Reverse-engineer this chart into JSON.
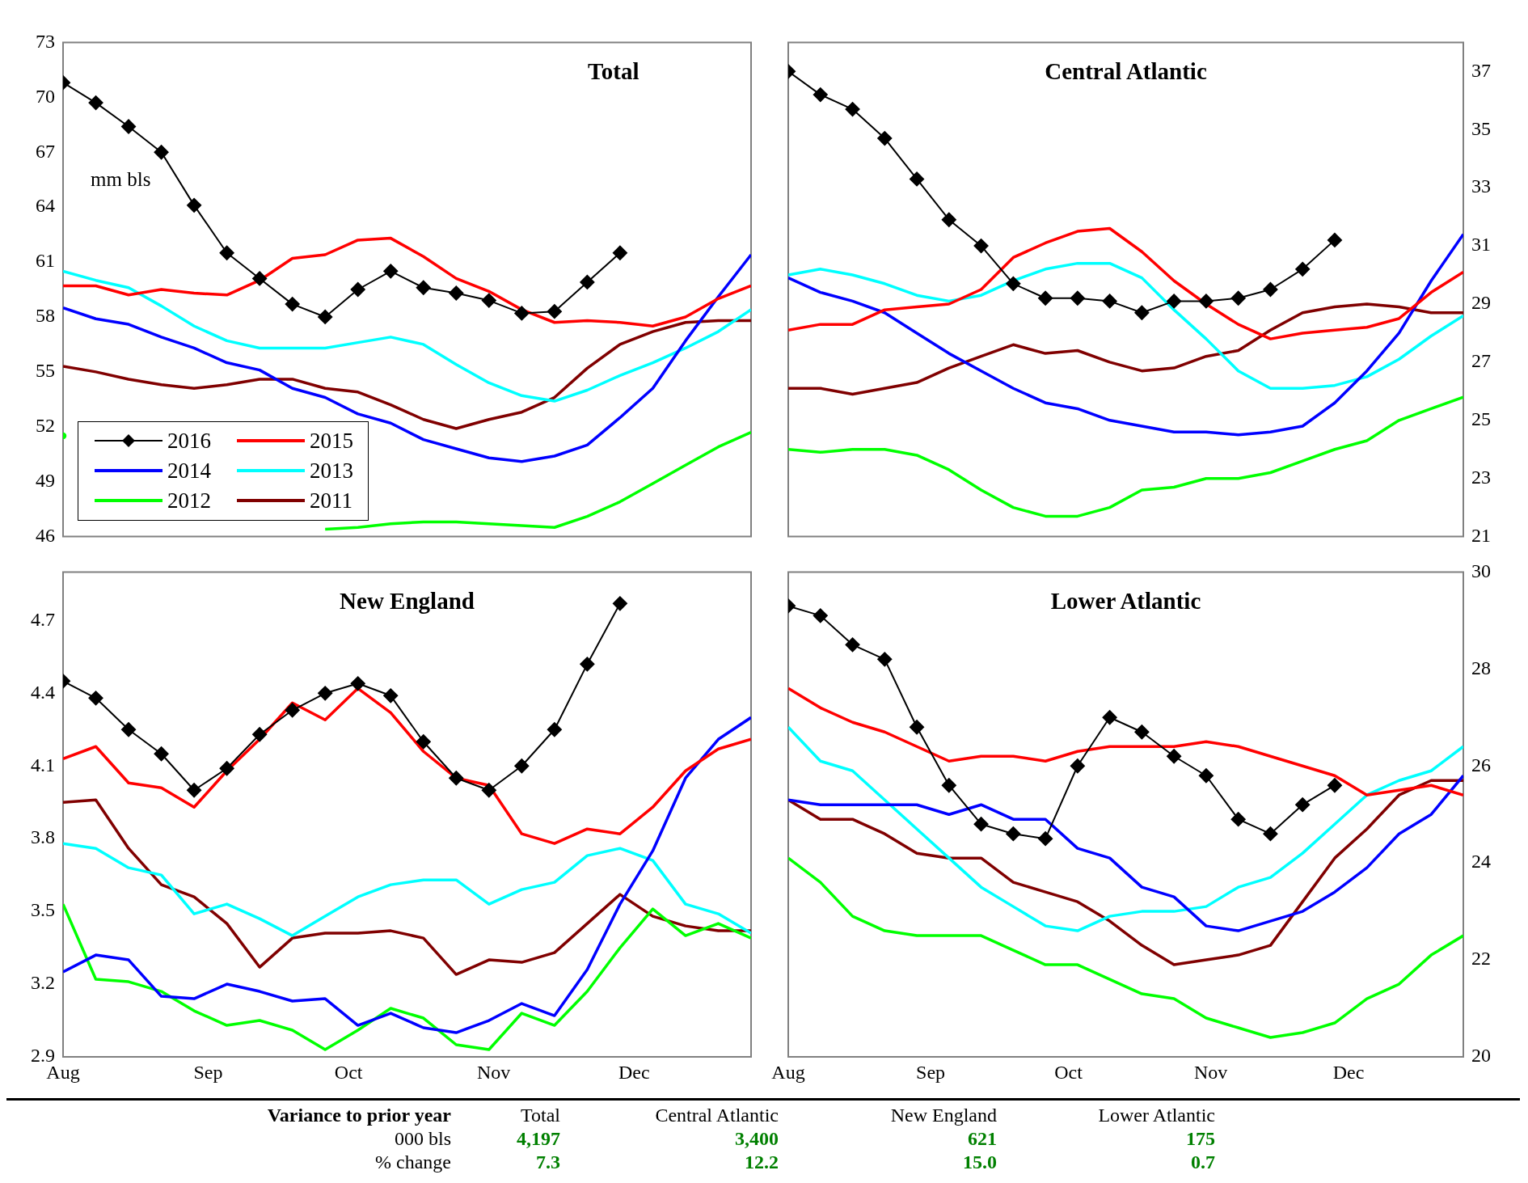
{
  "chart_data": [
    {
      "type": "line",
      "title": "Total",
      "annotations": [
        "mm bls"
      ],
      "legend": "bottom left",
      "tick_labels": "y",
      "x": [
        "--08-01",
        "--08-08",
        "--08-15",
        "--08-22",
        "--08-29",
        "--09-05",
        "--09-12",
        "--09-19",
        "--09-26",
        "--10-03",
        "--10-10",
        "--10-17",
        "--10-24",
        "--10-31",
        "--11-07",
        "--11-14",
        "--11-21",
        "--11-28",
        "--12-05",
        "--12-12",
        "--12-19",
        "--12-26"
      ],
      "xlim": [
        "--08-01",
        "--12-26"
      ],
      "xticks": [
        {
          "value": "--08-01",
          "label": null
        },
        {
          "value": "--09-01",
          "label": null
        },
        {
          "value": "--10-01",
          "label": null
        },
        {
          "value": "--11-01",
          "label": null
        },
        {
          "value": "--12-01",
          "label": null
        }
      ],
      "ylim": [
        46,
        73
      ],
      "yticks": [
        46,
        49,
        52,
        55,
        58,
        61,
        64,
        67,
        70,
        73
      ],
      "series": [
        {
          "name": "2016",
          "color": "#000000",
          "marker": "diamond",
          "x": [
            "--08-01",
            "--08-08",
            "--08-15",
            "--08-22",
            "--08-29",
            "--09-05",
            "--09-12",
            "--09-19",
            "--09-26",
            "--10-03",
            "--10-10",
            "--10-17",
            "--10-24",
            "--10-31",
            "--11-07",
            "--11-14",
            "--11-21",
            "--11-28"
          ],
          "values": [
            70.8,
            69.7,
            68.4,
            67.0,
            64.1,
            61.5,
            60.1,
            58.7,
            58.0,
            59.5,
            60.5,
            59.6,
            59.3,
            58.9,
            58.2,
            58.3,
            59.9,
            61.5
          ]
        },
        {
          "name": "2015",
          "color": "#ff0000",
          "values": [
            59.7,
            59.7,
            59.2,
            59.5,
            59.3,
            59.2,
            60.0,
            61.2,
            61.4,
            62.2,
            62.3,
            61.3,
            60.1,
            59.4,
            58.4,
            57.7,
            57.8,
            57.7,
            57.5,
            58.0,
            59.0,
            59.7
          ]
        },
        {
          "name": "2014",
          "color": "#0000ff",
          "values": [
            58.5,
            57.9,
            57.6,
            56.9,
            56.3,
            55.5,
            55.1,
            54.1,
            53.6,
            52.7,
            52.2,
            51.3,
            50.8,
            50.3,
            50.1,
            50.4,
            51.0,
            52.5,
            54.1,
            56.7,
            59.1,
            61.4
          ]
        },
        {
          "name": "2013",
          "color": "#00ffff",
          "values": [
            60.5,
            60.0,
            59.6,
            58.6,
            57.5,
            56.7,
            56.3,
            56.3,
            56.3,
            56.6,
            56.9,
            56.5,
            55.4,
            54.4,
            53.7,
            53.4,
            54.0,
            54.8,
            55.5,
            56.3,
            57.2,
            58.4
          ]
        },
        {
          "name": "2012",
          "color": "#00ff00",
          "values": [
            51.5,
            null,
            null,
            null,
            null,
            null,
            null,
            null,
            46.4,
            46.5,
            46.7,
            46.8,
            46.8,
            46.7,
            46.6,
            46.5,
            47.1,
            47.9,
            48.9,
            49.9,
            50.9,
            51.7
          ]
        },
        {
          "name": "2011",
          "color": "#800000",
          "values": [
            55.3,
            55.0,
            54.6,
            54.3,
            54.1,
            54.3,
            54.6,
            54.6,
            54.1,
            53.9,
            53.2,
            52.4,
            51.9,
            52.4,
            52.8,
            53.6,
            55.2,
            56.5,
            57.2,
            57.7,
            57.8,
            57.8
          ]
        }
      ]
    },
    {
      "type": "line",
      "title": "Central Atlantic",
      "tick_labels": "y",
      "x": [
        "--08-01",
        "--08-08",
        "--08-15",
        "--08-22",
        "--08-29",
        "--09-05",
        "--09-12",
        "--09-19",
        "--09-26",
        "--10-03",
        "--10-10",
        "--10-17",
        "--10-24",
        "--10-31",
        "--11-07",
        "--11-14",
        "--11-21",
        "--11-28",
        "--12-05",
        "--12-12",
        "--12-19",
        "--12-26"
      ],
      "xlim": [
        "--08-01",
        "--12-26"
      ],
      "xticks": [
        {
          "value": "--08-01",
          "label": null
        },
        {
          "value": "--09-01",
          "label": null
        },
        {
          "value": "--10-01",
          "label": null
        },
        {
          "value": "--11-01",
          "label": null
        },
        {
          "value": "--12-01",
          "label": null
        }
      ],
      "y2lim": [
        21,
        38
      ],
      "y2ticks": [
        21,
        23,
        25,
        27,
        29,
        31,
        33,
        35,
        37
      ],
      "series": [
        {
          "color": "#000000",
          "marker": "diamond",
          "axis": "y2",
          "x": [
            "--08-01",
            "--08-08",
            "--08-15",
            "--08-22",
            "--08-29",
            "--09-05",
            "--09-12",
            "--09-19",
            "--09-26",
            "--10-03",
            "--10-10",
            "--10-17",
            "--10-24",
            "--10-31",
            "--11-07",
            "--11-14",
            "--11-21",
            "--11-28"
          ],
          "values": [
            37.0,
            36.2,
            35.7,
            34.7,
            33.3,
            31.9,
            31.0,
            29.7,
            29.2,
            29.2,
            29.1,
            28.7,
            29.1,
            29.1,
            29.2,
            29.5,
            30.2,
            31.2
          ]
        },
        {
          "color": "#ff0000",
          "axis": "y2",
          "values": [
            28.1,
            28.3,
            28.3,
            28.8,
            28.9,
            29.0,
            29.5,
            30.6,
            31.1,
            31.5,
            31.6,
            30.8,
            29.8,
            29.0,
            28.3,
            27.8,
            28.0,
            28.1,
            28.2,
            28.5,
            29.4,
            30.1
          ]
        },
        {
          "color": "#0000ff",
          "axis": "y2",
          "values": [
            29.9,
            29.4,
            29.1,
            28.7,
            28.0,
            27.3,
            26.7,
            26.1,
            25.6,
            25.4,
            25.0,
            24.8,
            24.6,
            24.6,
            24.5,
            24.6,
            24.8,
            25.6,
            26.7,
            28.0,
            29.8,
            31.4
          ]
        },
        {
          "color": "#00ffff",
          "axis": "y2",
          "values": [
            30.0,
            30.2,
            30.0,
            29.7,
            29.3,
            29.1,
            29.3,
            29.8,
            30.2,
            30.4,
            30.4,
            29.9,
            28.8,
            27.8,
            26.7,
            26.1,
            26.1,
            26.2,
            26.5,
            27.1,
            27.9,
            28.6
          ]
        },
        {
          "color": "#00ff00",
          "axis": "y2",
          "values": [
            24.0,
            23.9,
            24.0,
            24.0,
            23.8,
            23.3,
            22.6,
            22.0,
            21.7,
            21.7,
            22.0,
            22.6,
            22.7,
            23.0,
            23.0,
            23.2,
            23.6,
            24.0,
            24.3,
            25.0,
            25.4,
            25.8
          ]
        },
        {
          "color": "#800000",
          "axis": "y2",
          "values": [
            26.1,
            26.1,
            25.9,
            26.1,
            26.3,
            26.8,
            27.2,
            27.6,
            27.3,
            27.4,
            27.0,
            26.7,
            26.8,
            27.2,
            27.4,
            28.1,
            28.7,
            28.9,
            29.0,
            28.9,
            28.7,
            28.7
          ]
        }
      ]
    },
    {
      "type": "line",
      "title": "New England",
      "x": [
        "--08-01",
        "--08-08",
        "--08-15",
        "--08-22",
        "--08-29",
        "--09-05",
        "--09-12",
        "--09-19",
        "--09-26",
        "--10-03",
        "--10-10",
        "--10-17",
        "--10-24",
        "--10-31",
        "--11-07",
        "--11-14",
        "--11-21",
        "--11-28",
        "--12-05",
        "--12-12",
        "--12-19",
        "--12-26"
      ],
      "xlim": [
        "--08-01",
        "--12-26"
      ],
      "xticks": [
        {
          "value": "--08-01",
          "label": "Aug"
        },
        {
          "value": "--09-01",
          "label": "Sep"
        },
        {
          "value": "--10-01",
          "label": "Oct"
        },
        {
          "value": "--11-01",
          "label": "Nov"
        },
        {
          "value": "--12-01",
          "label": "Dec"
        }
      ],
      "ylim": [
        2.9,
        4.9
      ],
      "yticks": [
        {
          "value": 2.9,
          "label": "2.9"
        },
        {
          "value": 3.2,
          "label": "3.2"
        },
        {
          "value": 3.5,
          "label": "3.5"
        },
        {
          "value": 3.8,
          "label": "3.8"
        },
        {
          "value": 4.1,
          "label": "4.1"
        },
        {
          "value": 4.4,
          "label": "4.4"
        },
        {
          "value": 4.7,
          "label": "4.7"
        }
      ],
      "series": [
        {
          "color": "#000000",
          "marker": "diamond",
          "x": [
            "--08-01",
            "--08-08",
            "--08-15",
            "--08-22",
            "--08-29",
            "--09-05",
            "--09-12",
            "--09-19",
            "--09-26",
            "--10-03",
            "--10-10",
            "--10-17",
            "--10-24",
            "--10-31",
            "--11-07",
            "--11-14",
            "--11-21",
            "--11-28"
          ],
          "values": [
            4.45,
            4.38,
            4.25,
            4.15,
            4.0,
            4.09,
            4.23,
            4.33,
            4.4,
            4.44,
            4.39,
            4.2,
            4.05,
            4.0,
            4.1,
            4.25,
            4.52,
            4.77
          ]
        },
        {
          "color": "#ff0000",
          "values": [
            4.13,
            4.18,
            4.03,
            4.01,
            3.93,
            4.08,
            4.21,
            4.36,
            4.29,
            4.42,
            4.32,
            4.16,
            4.05,
            4.02,
            3.82,
            3.78,
            3.84,
            3.82,
            3.93,
            4.08,
            4.17,
            4.21
          ]
        },
        {
          "color": "#0000ff",
          "values": [
            3.25,
            3.32,
            3.3,
            3.15,
            3.14,
            3.2,
            3.17,
            3.13,
            3.14,
            3.03,
            3.08,
            3.02,
            3.0,
            3.05,
            3.12,
            3.07,
            3.26,
            3.53,
            3.75,
            4.05,
            4.21,
            4.3
          ]
        },
        {
          "color": "#00ffff",
          "values": [
            3.78,
            3.76,
            3.68,
            3.65,
            3.49,
            3.53,
            3.47,
            3.4,
            3.48,
            3.56,
            3.61,
            3.63,
            3.63,
            3.53,
            3.59,
            3.62,
            3.73,
            3.76,
            3.71,
            3.53,
            3.49,
            3.41
          ]
        },
        {
          "color": "#00ff00",
          "values": [
            3.53,
            3.22,
            3.21,
            3.17,
            3.09,
            3.03,
            3.05,
            3.01,
            2.93,
            3.01,
            3.1,
            3.06,
            2.95,
            2.93,
            3.08,
            3.03,
            3.17,
            3.35,
            3.51,
            3.4,
            3.45,
            3.39
          ]
        },
        {
          "color": "#800000",
          "values": [
            3.95,
            3.96,
            3.76,
            3.61,
            3.56,
            3.45,
            3.27,
            3.39,
            3.41,
            3.41,
            3.42,
            3.39,
            3.24,
            3.3,
            3.29,
            3.33,
            3.45,
            3.57,
            3.48,
            3.44,
            3.42,
            3.42
          ]
        }
      ]
    },
    {
      "type": "line",
      "title": "Lower Atlantic",
      "x": [
        "--08-01",
        "--08-08",
        "--08-15",
        "--08-22",
        "--08-29",
        "--09-05",
        "--09-12",
        "--09-19",
        "--09-26",
        "--10-03",
        "--10-10",
        "--10-17",
        "--10-24",
        "--10-31",
        "--11-07",
        "--11-14",
        "--11-21",
        "--11-28",
        "--12-05",
        "--12-12",
        "--12-19",
        "--12-26"
      ],
      "xlim": [
        "--08-01",
        "--12-26"
      ],
      "xticks": [
        {
          "value": "--08-01",
          "label": "Aug"
        },
        {
          "value": "--09-01",
          "label": "Sep"
        },
        {
          "value": "--10-01",
          "label": "Oct"
        },
        {
          "value": "--11-01",
          "label": "Nov"
        },
        {
          "value": "--12-01",
          "label": "Dec"
        }
      ],
      "y2lim": [
        20,
        30
      ],
      "y2ticks": [
        20,
        22,
        24,
        26,
        28,
        30
      ],
      "series": [
        {
          "color": "#000000",
          "marker": "diamond",
          "axis": "y2",
          "x": [
            "--08-01",
            "--08-08",
            "--08-15",
            "--08-22",
            "--08-29",
            "--09-05",
            "--09-12",
            "--09-19",
            "--09-26",
            "--10-03",
            "--10-10",
            "--10-17",
            "--10-24",
            "--10-31",
            "--11-07",
            "--11-14",
            "--11-21",
            "--11-28"
          ],
          "values": [
            29.3,
            29.1,
            28.5,
            28.2,
            26.8,
            25.6,
            24.8,
            24.6,
            24.5,
            26.0,
            27.0,
            26.7,
            26.2,
            25.8,
            24.9,
            24.6,
            25.2,
            25.6
          ]
        },
        {
          "color": "#ff0000",
          "axis": "y2",
          "values": [
            27.6,
            27.2,
            26.9,
            26.7,
            26.4,
            26.1,
            26.2,
            26.2,
            26.1,
            26.3,
            26.4,
            26.4,
            26.4,
            26.5,
            26.4,
            26.2,
            26.0,
            25.8,
            25.4,
            25.5,
            25.6,
            25.4
          ]
        },
        {
          "color": "#0000ff",
          "axis": "y2",
          "values": [
            25.3,
            25.2,
            25.2,
            25.2,
            25.2,
            25.0,
            25.2,
            24.9,
            24.9,
            24.3,
            24.1,
            23.5,
            23.3,
            22.7,
            22.6,
            22.8,
            23.0,
            23.4,
            23.9,
            24.6,
            25.0,
            25.8
          ]
        },
        {
          "color": "#00ffff",
          "axis": "y2",
          "values": [
            26.8,
            26.1,
            25.9,
            25.3,
            24.7,
            24.1,
            23.5,
            23.1,
            22.7,
            22.6,
            22.9,
            23.0,
            23.0,
            23.1,
            23.5,
            23.7,
            24.2,
            24.8,
            25.4,
            25.7,
            25.9,
            26.4
          ]
        },
        {
          "color": "#00ff00",
          "axis": "y2",
          "values": [
            24.1,
            23.6,
            22.9,
            22.6,
            22.5,
            22.5,
            22.5,
            22.2,
            21.9,
            21.9,
            21.6,
            21.3,
            21.2,
            20.8,
            20.6,
            20.4,
            20.5,
            20.7,
            21.2,
            21.5,
            22.1,
            22.5
          ]
        },
        {
          "color": "#800000",
          "axis": "y2",
          "values": [
            25.3,
            24.9,
            24.9,
            24.6,
            24.2,
            24.1,
            24.1,
            23.6,
            23.4,
            23.2,
            22.8,
            22.3,
            21.9,
            22.0,
            22.1,
            22.3,
            23.2,
            24.1,
            24.7,
            25.4,
            25.7,
            25.7
          ]
        }
      ]
    },
    {
      "type": "other",
      "annotations": [
        "Variance to prior year",
        "Total",
        "Central Atlantic",
        "New England",
        "Lower Atlantic",
        "000 bls",
        "4,197",
        "3,400",
        "621",
        "175",
        "% change",
        "7.3",
        "12.2",
        "15.0",
        "0.7"
      ]
    }
  ]
}
